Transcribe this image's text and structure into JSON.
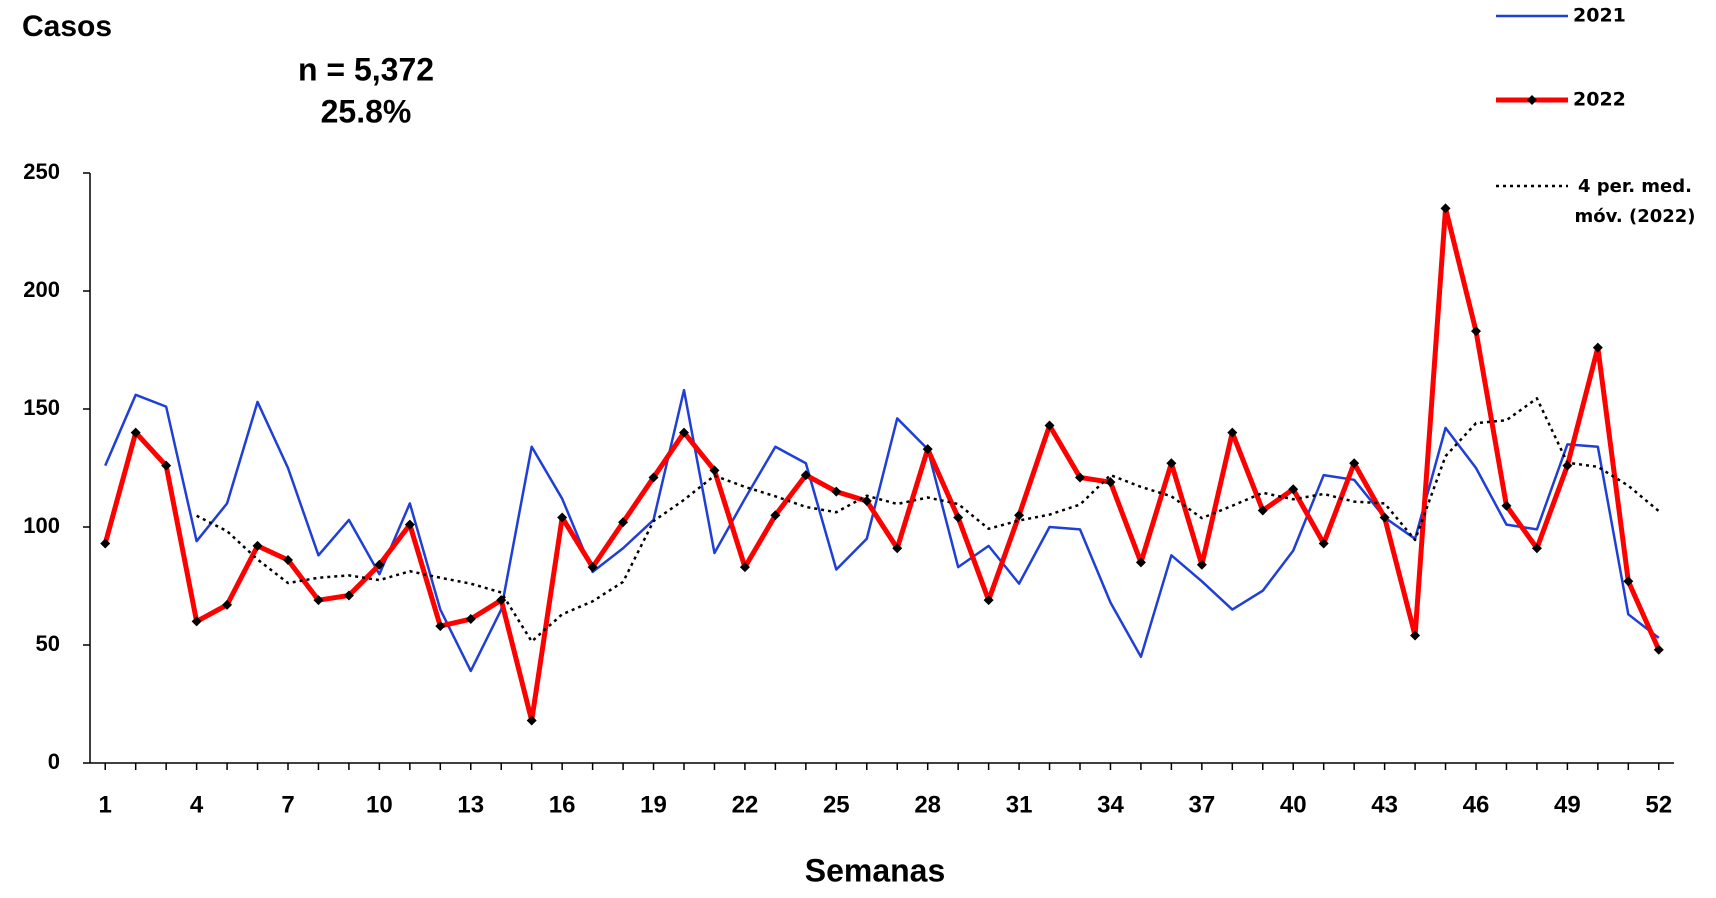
{
  "chart_data": {
    "type": "line",
    "y_label": "Casos",
    "x_label": "Semanas",
    "annotations": [
      "n = 5,372",
      "25.8%"
    ],
    "x": [
      1,
      2,
      3,
      4,
      5,
      6,
      7,
      8,
      9,
      10,
      11,
      12,
      13,
      14,
      15,
      16,
      17,
      18,
      19,
      20,
      21,
      22,
      23,
      24,
      25,
      26,
      27,
      28,
      29,
      30,
      31,
      32,
      33,
      34,
      35,
      36,
      37,
      38,
      39,
      40,
      41,
      42,
      43,
      44,
      45,
      46,
      47,
      48,
      49,
      50,
      51,
      52
    ],
    "series": [
      {
        "name": "2021",
        "color": "#1f3fd6",
        "style": "solid",
        "markers": false,
        "values": [
          126,
          156,
          151,
          94,
          110,
          153,
          125,
          88,
          103,
          80,
          110,
          65,
          39,
          65,
          134,
          112,
          81,
          91,
          103,
          158,
          89,
          112,
          134,
          127,
          82,
          95,
          146,
          133,
          83,
          92,
          76,
          100,
          99,
          68,
          45,
          88,
          77,
          65,
          73,
          90,
          122,
          120,
          104,
          95,
          142,
          125,
          101,
          99,
          135,
          134,
          63,
          53
        ]
      },
      {
        "name": "2022",
        "color": "#ff0000",
        "style": "solid",
        "markers": true,
        "values": [
          93,
          140,
          126,
          60,
          67,
          92,
          86,
          69,
          71,
          84,
          101,
          58,
          61,
          69,
          18,
          104,
          83,
          102,
          121,
          140,
          124,
          83,
          105,
          122,
          115,
          111,
          91,
          133,
          104,
          69,
          105,
          143,
          121,
          119,
          85,
          127,
          84,
          140,
          107,
          116,
          93,
          127,
          104,
          54,
          235,
          183,
          109,
          91,
          126,
          176,
          77,
          48
        ]
      },
      {
        "name": "4 per. med. móv. (2022)",
        "color": "#000000",
        "style": "dotted",
        "markers": false,
        "values": [
          null,
          null,
          null,
          104.75,
          98.25,
          86.25,
          76.25,
          78.5,
          79.5,
          77.5,
          81.25,
          78.5,
          76,
          72.25,
          51.5,
          63,
          68.5,
          76.75,
          102.5,
          111.5,
          121.75,
          117,
          113,
          108.5,
          106.25,
          113.25,
          109.75,
          112.5,
          109.75,
          99.25,
          102.75,
          105.25,
          109.5,
          122,
          117,
          113,
          103.75,
          109,
          114.5,
          111.75,
          114,
          110.75,
          110,
          94.5,
          130,
          144,
          145.25,
          154.5,
          127.25,
          125.5,
          117.5,
          106.75
        ]
      }
    ],
    "xlim": [
      0.5,
      52.5
    ],
    "xticks": [
      1,
      4,
      7,
      10,
      13,
      16,
      19,
      22,
      25,
      28,
      31,
      34,
      37,
      40,
      43,
      46,
      49,
      52
    ],
    "ylim": [
      0,
      250
    ],
    "yticks": [
      0,
      50,
      100,
      150,
      200,
      250
    ],
    "grid": false,
    "legend": "top-right"
  }
}
